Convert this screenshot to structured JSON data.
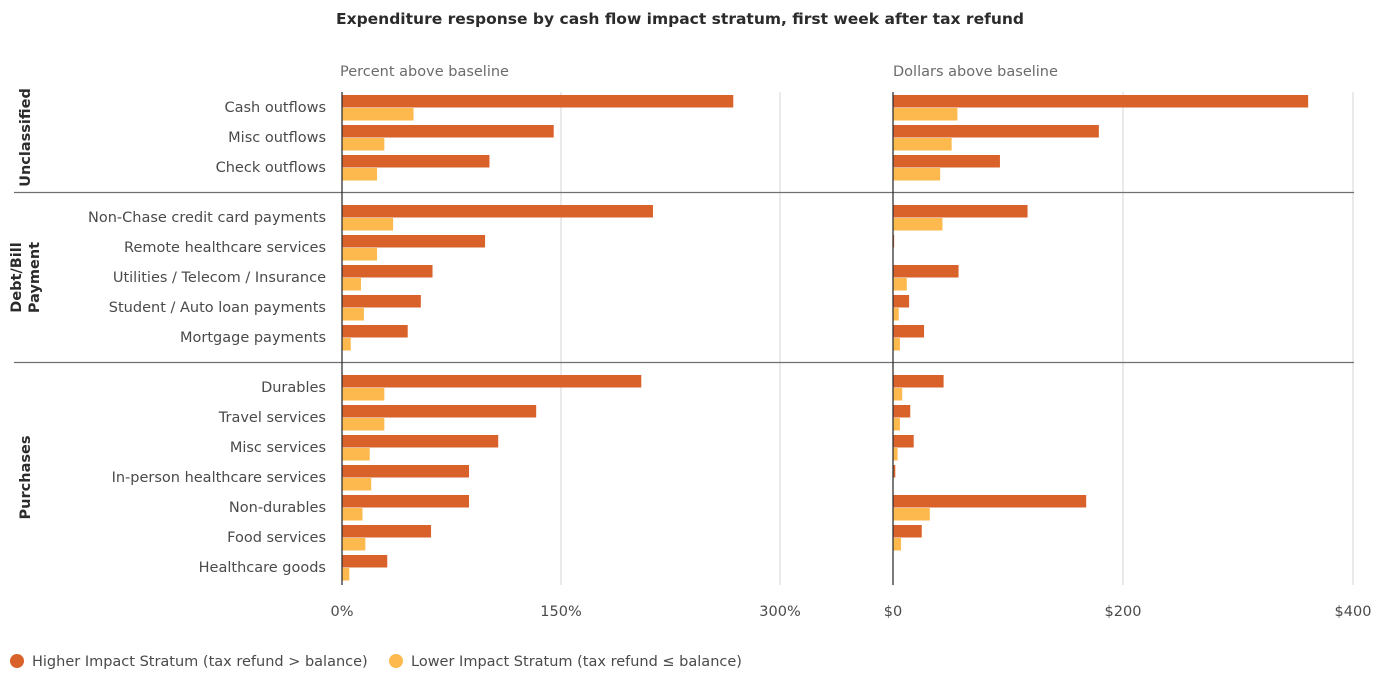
{
  "chart_data": {
    "type": "bar",
    "orientation": "horizontal",
    "title": "Expenditure response by cash flow impact stratum, first week after tax refund",
    "groups": [
      {
        "name": "Unclassified",
        "categories": [
          "Cash outflows",
          "Misc outflows",
          "Check outflows"
        ]
      },
      {
        "name": "Debt/Bill Payment",
        "categories": [
          "Non-Chase credit card payments",
          "Remote healthcare services",
          "Utilities / Telecom / Insurance",
          "Student / Auto loan payments",
          "Mortgage payments"
        ]
      },
      {
        "name": "Purchases",
        "categories": [
          "Durables",
          "Travel services",
          "Misc services",
          "In-person healthcare services",
          "Non-durables",
          "Food services",
          "Healthcare goods"
        ]
      }
    ],
    "categories": [
      "Cash outflows",
      "Misc outflows",
      "Check outflows",
      "Non-Chase credit card payments",
      "Remote healthcare services",
      "Utilities / Telecom / Insurance",
      "Student / Auto loan payments",
      "Mortgage payments",
      "Durables",
      "Travel services",
      "Misc services",
      "In-person healthcare services",
      "Non-durables",
      "Food services",
      "Healthcare goods"
    ],
    "panels": [
      {
        "title": "Percent above baseline",
        "unit": "percent",
        "xlim": [
          0,
          300
        ],
        "ticks": [
          0,
          150,
          300
        ],
        "tick_labels": [
          "0%",
          "150%",
          "300%"
        ],
        "series": [
          {
            "name": "Higher Impact Stratum  (tax refund > balance)",
            "values": [
              268,
              145,
              101,
              213,
              98,
              62,
              54,
              45,
              205,
              133,
              107,
              87,
              87,
              61,
              31
            ]
          },
          {
            "name": "Lower Impact Stratum (tax refund ≤ balance)",
            "values": [
              49,
              29,
              24,
              35,
              24,
              13,
              15,
              6,
              29,
              29,
              19,
              20,
              14,
              16,
              5
            ]
          }
        ]
      },
      {
        "title": "Dollars above baseline",
        "unit": "dollars",
        "xlim": [
          0,
          400
        ],
        "ticks": [
          0,
          200,
          400
        ],
        "tick_labels": [
          "$0",
          "$200",
          "$400"
        ],
        "series": [
          {
            "name": "Higher Impact Stratum  (tax refund > balance)",
            "values": [
              361,
              179,
              93,
              117,
              1,
              57,
              14,
              27,
              44,
              15,
              18,
              2,
              168,
              25,
              0
            ]
          },
          {
            "name": "Lower Impact Stratum (tax refund ≤ balance)",
            "values": [
              56,
              51,
              41,
              43,
              0,
              12,
              5,
              6,
              8,
              6,
              4,
              0,
              32,
              7,
              0
            ]
          }
        ]
      }
    ],
    "colors": {
      "higher": "#d9622b",
      "lower": "#fdb94e"
    },
    "legend": {
      "position": "bottom-left",
      "higher_label": "Higher Impact Stratum  (tax refund > balance)",
      "lower_label": "Lower Impact Stratum (tax refund ≤ balance)"
    },
    "grid": true
  }
}
